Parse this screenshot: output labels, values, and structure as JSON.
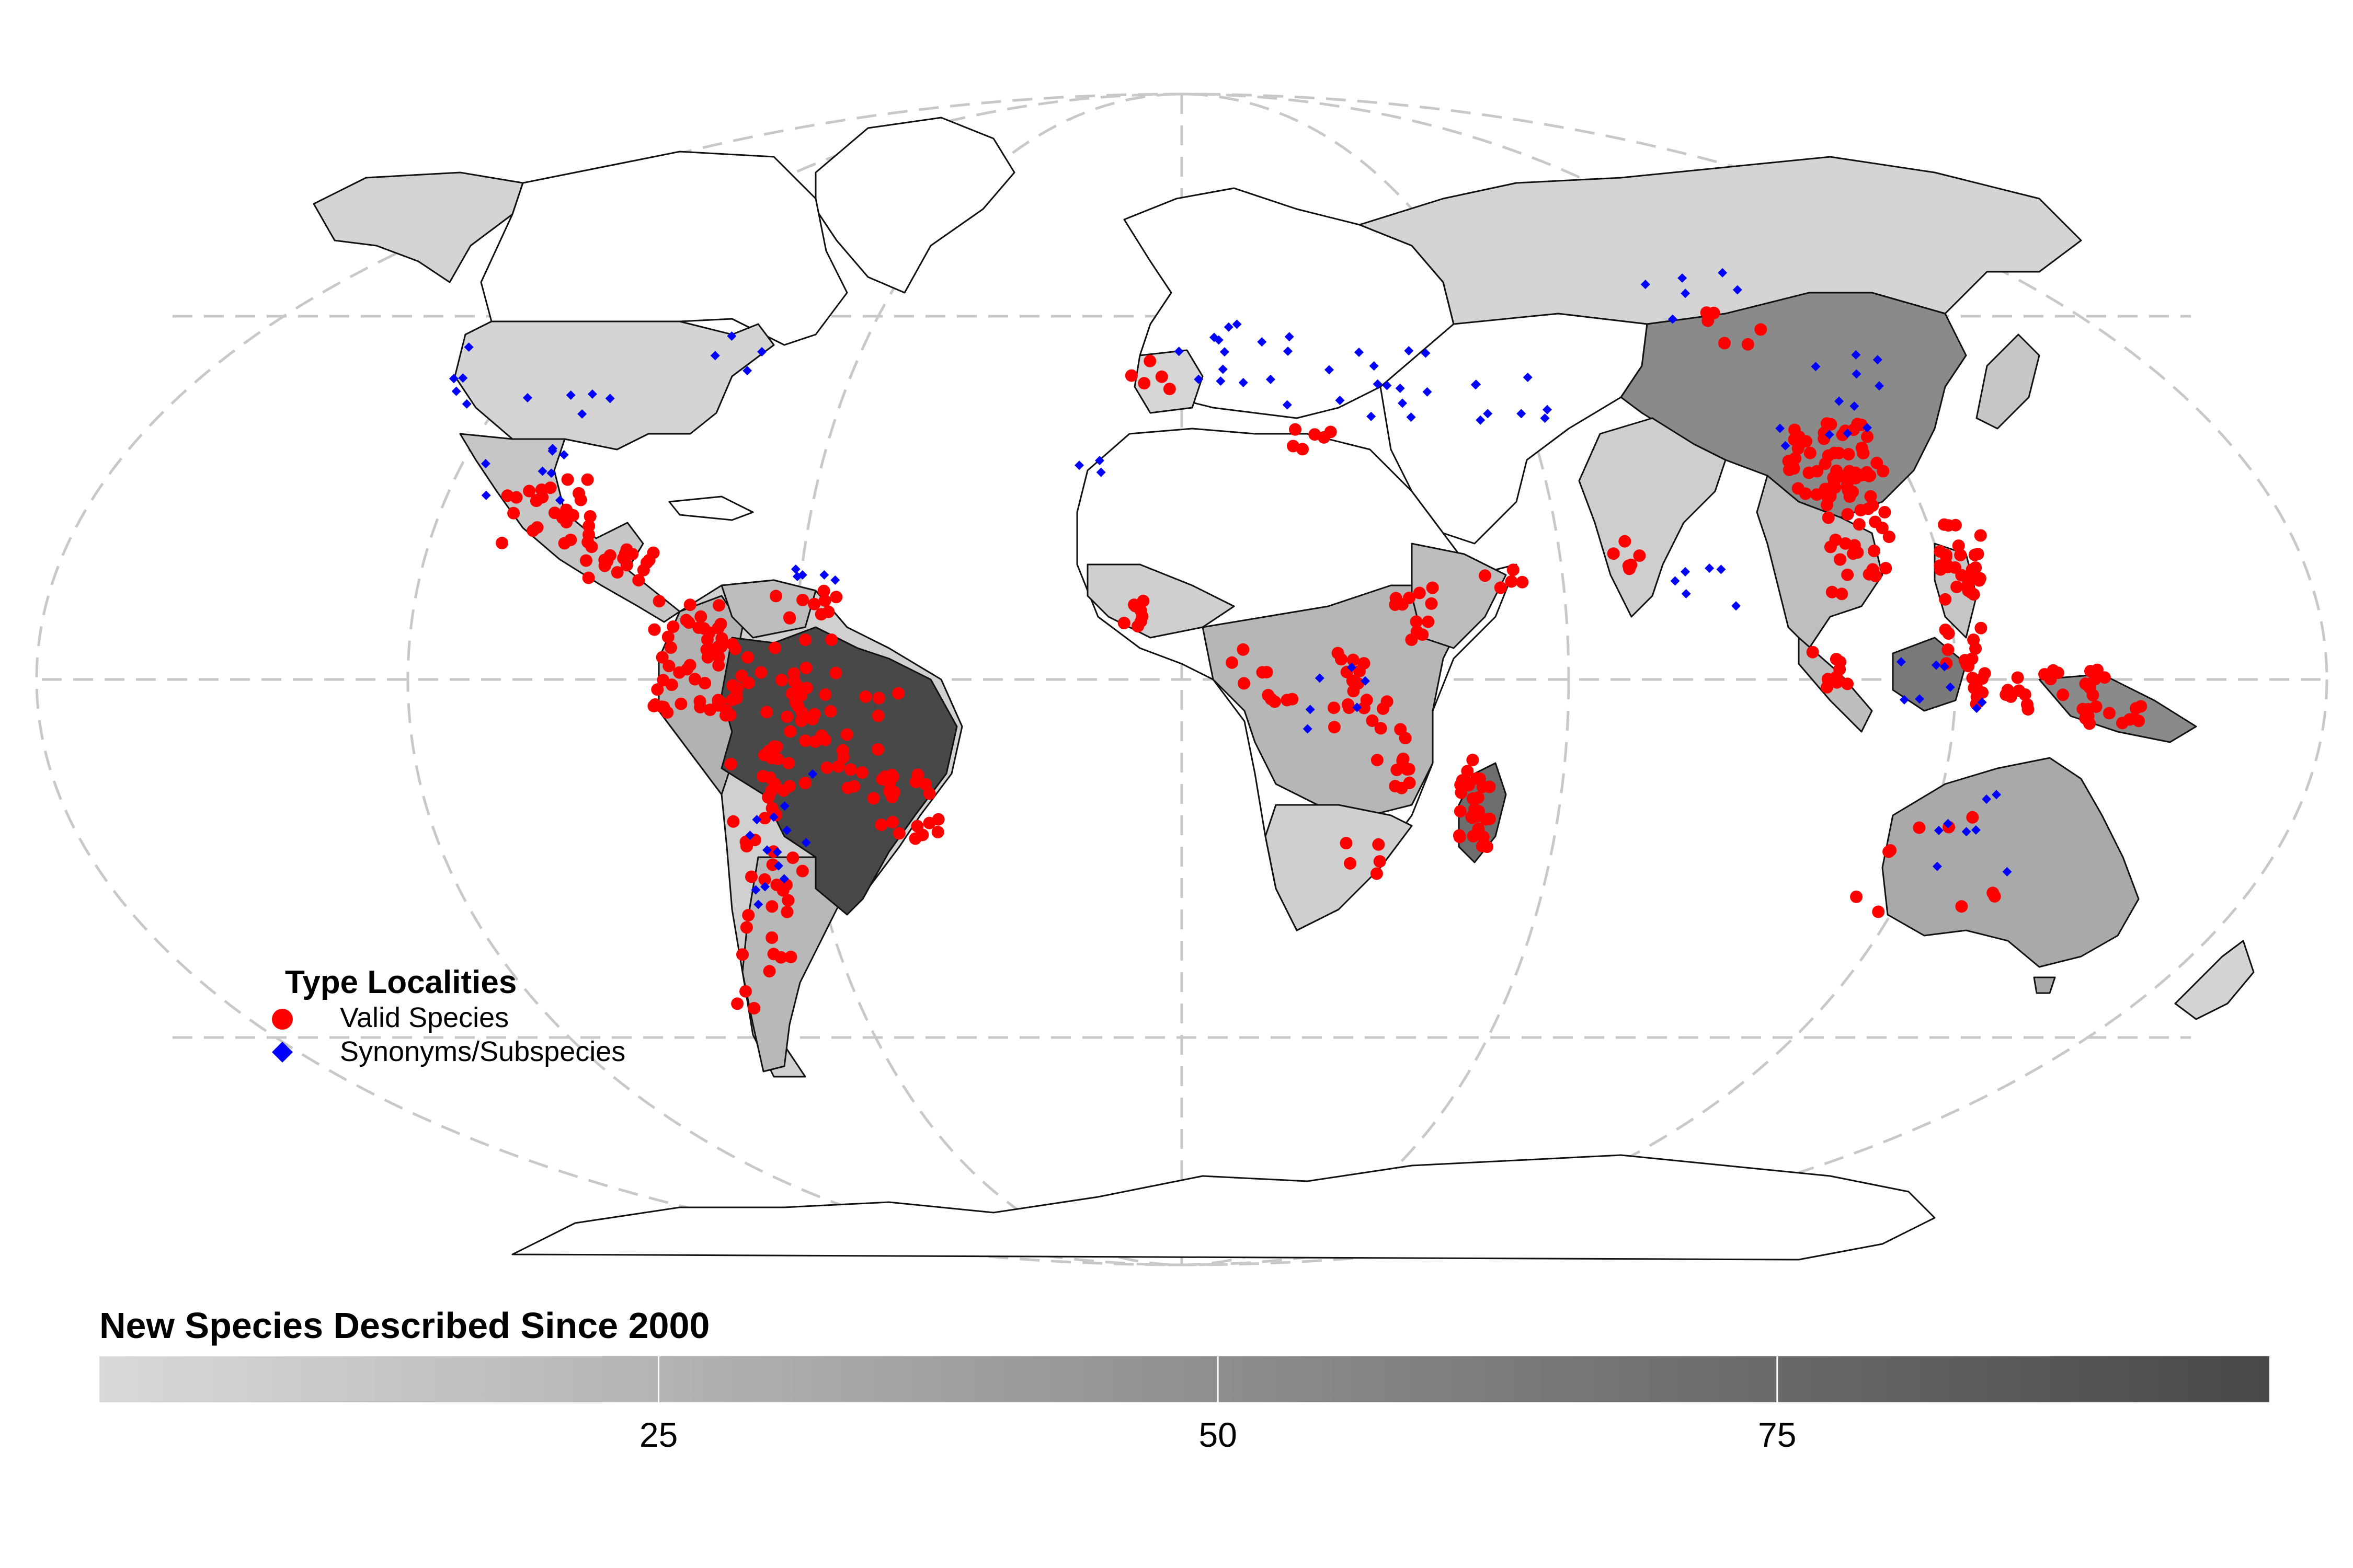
{
  "legend": {
    "title": "Type Localities",
    "valid_label": "Valid Species",
    "synonym_label": "Synonyms/Subspecies",
    "valid_color": "#ff0000",
    "synonym_color": "#0000ff"
  },
  "colorbar": {
    "title": "New Species Described Since 2000",
    "range": [
      0,
      97
    ],
    "ticks": [
      25,
      50,
      75
    ],
    "tick_labels": [
      "25",
      "50",
      "75"
    ],
    "color_low": "#d9d9d9",
    "color_high": "#484848"
  },
  "map": {
    "projection": "Robinson",
    "graticule": "dashed",
    "fill_levels": [
      {
        "region": "Brazil",
        "value": 95
      },
      {
        "region": "China",
        "value": 60
      },
      {
        "region": "Borneo",
        "value": 55
      },
      {
        "region": "New Guinea",
        "value": 50
      },
      {
        "region": "Madagascar",
        "value": 48
      },
      {
        "region": "Australia",
        "value": 25
      },
      {
        "region": "Argentina",
        "value": 22
      },
      {
        "region": "Peru",
        "value": 25
      },
      {
        "region": "Colombia",
        "value": 22
      },
      {
        "region": "Ecuador",
        "value": 28
      },
      {
        "region": "Bolivia",
        "value": 20
      },
      {
        "region": "Venezuela",
        "value": 18
      },
      {
        "region": "Mexico",
        "value": 15
      },
      {
        "region": "Central Africa",
        "value": 15
      },
      {
        "region": "India",
        "value": 10
      },
      {
        "region": "USA",
        "value": 5
      },
      {
        "region": "Canada",
        "value": 5
      },
      {
        "region": "Russia",
        "value": 5
      }
    ]
  }
}
